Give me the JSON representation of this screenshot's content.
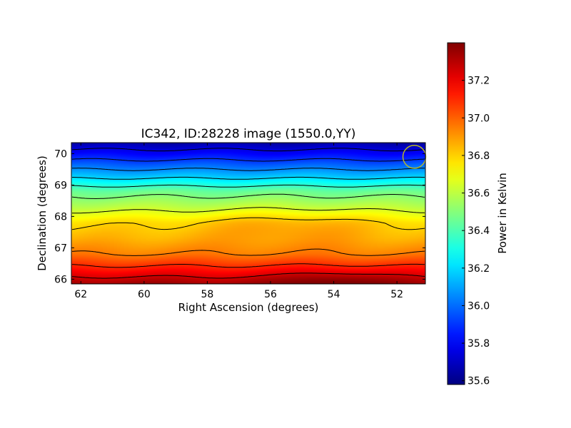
{
  "chart_data": {
    "type": "heatmap",
    "title": "IC342, ID:28228 image (1550.0,YY)",
    "xlabel": "Right Ascension (degrees)",
    "ylabel": "Declination (degrees)",
    "xlim": [
      62.3,
      51.1
    ],
    "ylim": [
      65.85,
      70.35
    ],
    "x_axis_inverted": true,
    "x_ticks": [
      62,
      60,
      58,
      56,
      54,
      52
    ],
    "x_tick_labels": [
      "62",
      "60",
      "58",
      "56",
      "54",
      "52"
    ],
    "y_ticks": [
      66,
      67,
      68,
      69,
      70
    ],
    "y_tick_labels": [
      "66",
      "67",
      "68",
      "69",
      "70"
    ],
    "colorbar": {
      "label": "Power in Kelvin",
      "colormap": "jet",
      "range": [
        35.58,
        37.4
      ],
      "ticks": [
        35.6,
        35.8,
        36.0,
        36.2,
        36.4,
        36.6,
        36.8,
        37.0,
        37.2
      ],
      "tick_labels": [
        "35.6",
        "35.8",
        "36.0",
        "36.2",
        "36.4",
        "36.6",
        "36.8",
        "37.0",
        "37.2"
      ]
    },
    "dec_profile": {
      "dec": [
        65.85,
        66.3,
        66.8,
        67.3,
        67.8,
        68.3,
        68.8,
        69.3,
        69.8,
        70.35
      ],
      "power": [
        37.35,
        37.15,
        36.95,
        36.85,
        36.78,
        36.6,
        36.45,
        36.15,
        35.9,
        35.65
      ]
    },
    "features": {
      "warm_bulge": {
        "ra": 55.5,
        "dec": 67.7,
        "power": 36.88
      },
      "hot_spot": {
        "ra": 54.0,
        "dec": 65.95,
        "power": 37.4
      }
    },
    "contour_levels": [
      35.75,
      35.9,
      36.05,
      36.2,
      36.35,
      36.5,
      36.65,
      36.8,
      36.95,
      37.1,
      37.25
    ],
    "contour_color": "#000000",
    "beam_marker": {
      "shape": "circle",
      "color": "#b8b824",
      "ra": 51.45,
      "dec": 69.9
    }
  }
}
